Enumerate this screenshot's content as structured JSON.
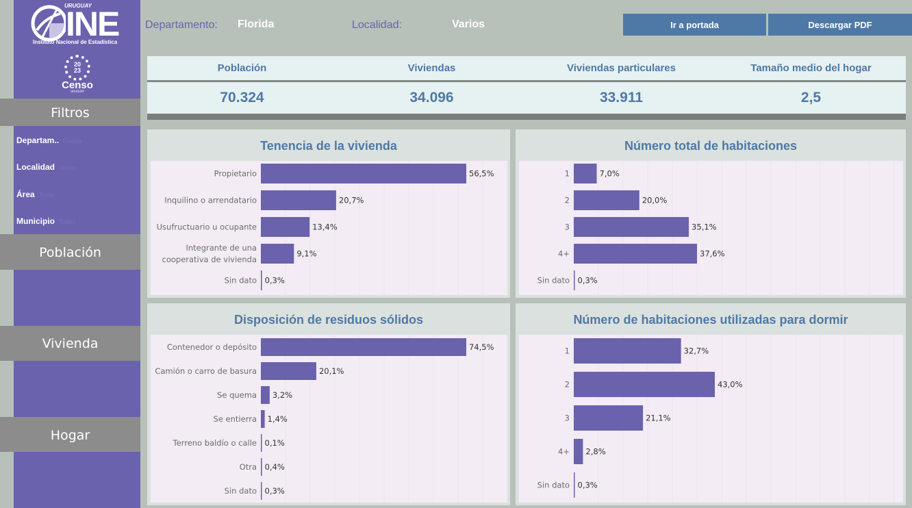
{
  "sidebar": {
    "logo": {
      "text": "INE",
      "top": "URUGUAY",
      "sub": "Instituto Nacional de Estadística"
    },
    "censo": {
      "year": "20\n23",
      "word": "Censo",
      "small": "URUGUAY"
    },
    "filters_label": "Filtros",
    "filters": [
      {
        "label": "Departam..",
        "value": "Florida"
      },
      {
        "label": "Localidad",
        "value": "Varios"
      },
      {
        "label": "Área",
        "value": "Todas"
      },
      {
        "label": "Municipio",
        "value": "Todos"
      }
    ],
    "sections": {
      "poblacion": "Población",
      "vivienda": "Vivienda",
      "hogar": "Hogar"
    }
  },
  "header": {
    "departamento_label": "Departamento:",
    "departamento_value": "Florida",
    "localidad_label": "Localidad:",
    "localidad_value": "Varios",
    "btn_portada": "Ir a portada",
    "btn_pdf": "Descargar PDF"
  },
  "kpis": [
    {
      "title": "Población",
      "value": "70.324"
    },
    {
      "title": "Viviendas",
      "value": "34.096"
    },
    {
      "title": "Viviendas particulares",
      "value": "33.911"
    },
    {
      "title": "Tamaño medio del hogar",
      "value": "2,5"
    }
  ],
  "colors": {
    "bar": "#6a62ad",
    "title": "#4e79a7"
  },
  "chart_data": [
    {
      "type": "bar",
      "orientation": "horizontal",
      "title": "Tenencia de la vivienda",
      "categories": [
        "Propietario",
        "Inquilino o arrendatario",
        "Usufructuario u ocupante",
        "Integrante de una cooperativa de vivienda",
        "Sin dato"
      ],
      "values": [
        56.5,
        20.7,
        13.4,
        9.1,
        0.3
      ],
      "labels": [
        "56,5%",
        "20,7%",
        "13,4%",
        "9,1%",
        "0,3%"
      ]
    },
    {
      "type": "bar",
      "orientation": "horizontal",
      "title": "Número total de habitaciones",
      "categories": [
        "1",
        "2",
        "3",
        "4+",
        "Sin dato"
      ],
      "values": [
        7.0,
        20.0,
        35.1,
        37.6,
        0.3
      ],
      "labels": [
        "7,0%",
        "20,0%",
        "35,1%",
        "37,6%",
        "0,3%"
      ]
    },
    {
      "type": "bar",
      "orientation": "horizontal",
      "title": "Disposición de residuos sólidos",
      "categories": [
        "Contenedor o depósito",
        "Camión o carro de basura",
        "Se quema",
        "Se entierra",
        "Terreno baldío o calle",
        "Otra",
        "Sin dato"
      ],
      "values": [
        74.5,
        20.1,
        3.2,
        1.4,
        0.1,
        0.4,
        0.3
      ],
      "labels": [
        "74,5%",
        "20,1%",
        "3,2%",
        "1,4%",
        "0,1%",
        "0,4%",
        "0,3%"
      ]
    },
    {
      "type": "bar",
      "orientation": "horizontal",
      "title": "Número de habitaciones utilizadas para dormir",
      "categories": [
        "1",
        "2",
        "3",
        "4+",
        "Sin dato"
      ],
      "values": [
        32.7,
        43.0,
        21.1,
        2.8,
        0.3
      ],
      "labels": [
        "32,7%",
        "43,0%",
        "21,1%",
        "2,8%",
        "0,3%"
      ]
    }
  ]
}
